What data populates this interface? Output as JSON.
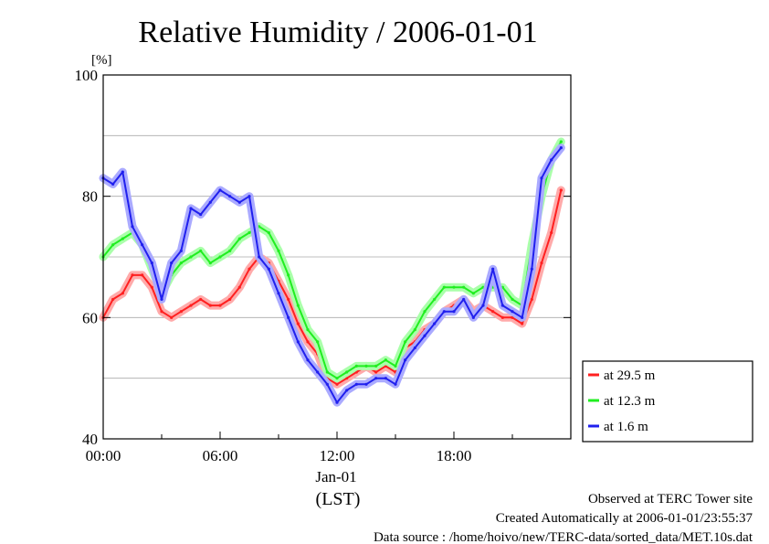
{
  "chart_data": {
    "type": "line",
    "title": "Relative Humidity / 2006-01-01",
    "ylabel": "[%]",
    "xlabel": "(LST)",
    "x_date_label": "Jan-01",
    "ylim": [
      40,
      100
    ],
    "xlim_hours": [
      0,
      24
    ],
    "grid": true,
    "legend_placement": "right",
    "y_ticks": [
      {
        "value": 40,
        "label": "40"
      },
      {
        "value": 60,
        "label": "60"
      },
      {
        "value": 80,
        "label": "80"
      },
      {
        "value": 100,
        "label": "100"
      }
    ],
    "x_ticks": [
      {
        "value": 0,
        "label": "00:00"
      },
      {
        "value": 6,
        "label": "06:00"
      },
      {
        "value": 12,
        "label": "12:00"
      },
      {
        "value": 18,
        "label": "18:00"
      }
    ],
    "series": [
      {
        "name": "at 29.5 m",
        "color": "#ff2020",
        "x": [
          0,
          0.5,
          1,
          1.5,
          2,
          2.5,
          3,
          3.5,
          4,
          4.5,
          5,
          5.5,
          6,
          6.5,
          7,
          7.5,
          8,
          8.5,
          9,
          9.5,
          10,
          10.5,
          11,
          11.5,
          12,
          12.5,
          13,
          13.5,
          14,
          14.5,
          15,
          15.5,
          16,
          16.5,
          17,
          17.5,
          18,
          18.5,
          19,
          19.5,
          20,
          20.5,
          21,
          21.5,
          22,
          22.5,
          23,
          23.5
        ],
        "y": [
          60,
          63,
          64,
          67,
          67,
          65,
          61,
          60,
          61,
          62,
          63,
          62,
          62,
          63,
          65,
          68,
          70,
          69,
          66,
          63,
          59,
          56,
          54,
          50,
          49,
          50,
          51,
          52,
          51,
          52,
          51,
          55,
          56,
          58,
          59,
          61,
          62,
          63,
          61,
          62,
          61,
          60,
          60,
          59,
          63,
          69,
          74,
          81
        ]
      },
      {
        "name": "at 12.3 m",
        "color": "#20ee20",
        "x": [
          0,
          0.5,
          1,
          1.5,
          2,
          2.5,
          3,
          3.5,
          4,
          4.5,
          5,
          5.5,
          6,
          6.5,
          7,
          7.5,
          8,
          8.5,
          9,
          9.5,
          10,
          10.5,
          11,
          11.5,
          12,
          12.5,
          13,
          13.5,
          14,
          14.5,
          15,
          15.5,
          16,
          16.5,
          17,
          17.5,
          18,
          18.5,
          19,
          19.5,
          20,
          20.5,
          21,
          21.5,
          22,
          22.5,
          23,
          23.5
        ],
        "y": [
          70,
          72,
          73,
          74,
          72,
          68,
          64,
          67,
          69,
          70,
          71,
          69,
          70,
          71,
          73,
          74,
          75,
          74,
          71,
          67,
          62,
          58,
          56,
          51,
          50,
          51,
          52,
          52,
          52,
          53,
          52,
          56,
          58,
          61,
          63,
          65,
          65,
          65,
          64,
          65,
          65,
          65,
          63,
          62,
          72,
          80,
          86,
          89
        ]
      },
      {
        "name": "at 1.6 m",
        "color": "#2020ee",
        "x": [
          0,
          0.5,
          1,
          1.5,
          2,
          2.5,
          3,
          3.5,
          4,
          4.5,
          5,
          5.5,
          6,
          6.5,
          7,
          7.5,
          8,
          8.5,
          9,
          9.5,
          10,
          10.5,
          11,
          11.5,
          12,
          12.5,
          13,
          13.5,
          14,
          14.5,
          15,
          15.5,
          16,
          16.5,
          17,
          17.5,
          18,
          18.5,
          19,
          19.5,
          20,
          20.5,
          21,
          21.5,
          22,
          22.5,
          23,
          23.5
        ],
        "y": [
          83,
          82,
          84,
          75,
          72,
          69,
          63,
          69,
          71,
          78,
          77,
          79,
          81,
          80,
          79,
          80,
          70,
          68,
          64,
          60,
          56,
          53,
          51,
          49,
          46,
          48,
          49,
          49,
          50,
          50,
          49,
          53,
          55,
          57,
          59,
          61,
          61,
          63,
          60,
          62,
          68,
          62,
          61,
          60,
          68,
          83,
          86,
          88
        ]
      }
    ]
  },
  "footer": {
    "observed": "Observed at TERC Tower site",
    "created": "Created Automatically at 2006-01-01/23:55:37",
    "source": "Data source : /home/hoivo/new/TERC-data/sorted_data/MET.10s.dat"
  }
}
